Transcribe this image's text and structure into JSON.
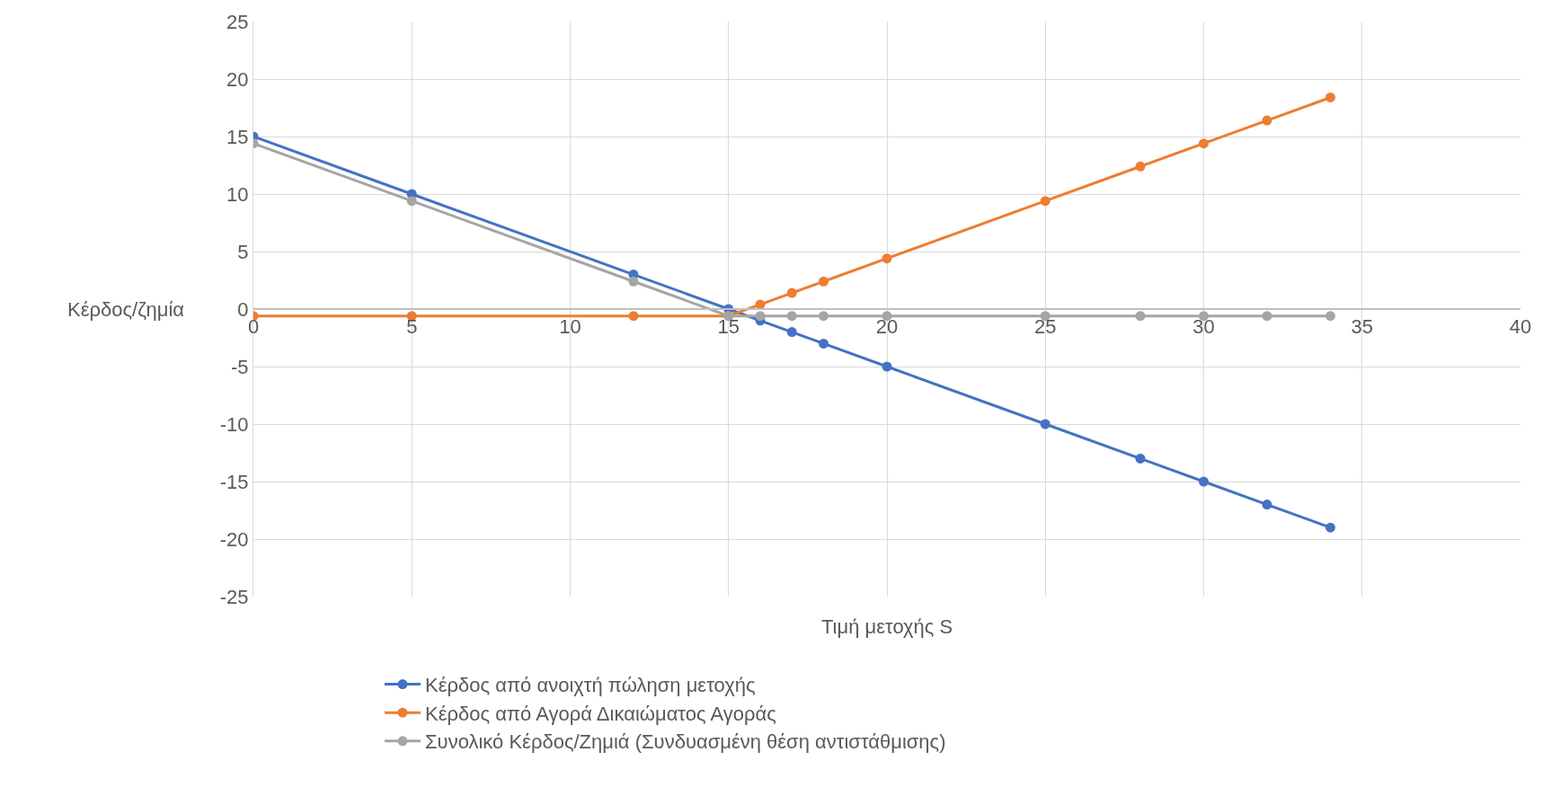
{
  "chart_data": {
    "type": "line",
    "xlabel": "Τιμή μετοχής S",
    "ylabel": "Κέρδος/ζημία",
    "x": [
      0,
      5,
      12,
      15,
      16,
      17,
      18,
      20,
      25,
      28,
      30,
      32,
      34
    ],
    "series": [
      {
        "name": "Κέρδος από ανοιχτή πώληση μετοχής",
        "color": "#4472c4",
        "values": [
          15,
          10,
          3,
          0,
          -1,
          -2,
          -3,
          -5,
          -10,
          -13,
          -15,
          -17,
          -19
        ]
      },
      {
        "name": "Κέρδος από Αγορά Δικαιώματος Αγοράς",
        "color": "#ed7d31",
        "values": [
          -0.6,
          -0.6,
          -0.6,
          -0.6,
          0.4,
          1.4,
          2.4,
          4.4,
          9.4,
          12.4,
          14.4,
          16.4,
          18.4
        ]
      },
      {
        "name": "Συνολικό Κέρδος/Ζημιά (Συνδυασμένη θέση αντιστάθμισης)",
        "color": "#a5a5a5",
        "values": [
          14.4,
          9.4,
          2.4,
          -0.6,
          -0.6,
          -0.6,
          -0.6,
          -0.6,
          -0.6,
          -0.6,
          -0.6,
          -0.6,
          -0.6
        ]
      }
    ],
    "xlim": [
      0,
      40
    ],
    "xticks": [
      0,
      5,
      10,
      15,
      20,
      25,
      30,
      35,
      40
    ],
    "ylim": [
      -25,
      25
    ],
    "yticks": [
      -25,
      -20,
      -15,
      -10,
      -5,
      0,
      5,
      10,
      15,
      20,
      25
    ],
    "grid": true,
    "legend": "bottom",
    "marker": "circle",
    "line_style": "solid"
  }
}
